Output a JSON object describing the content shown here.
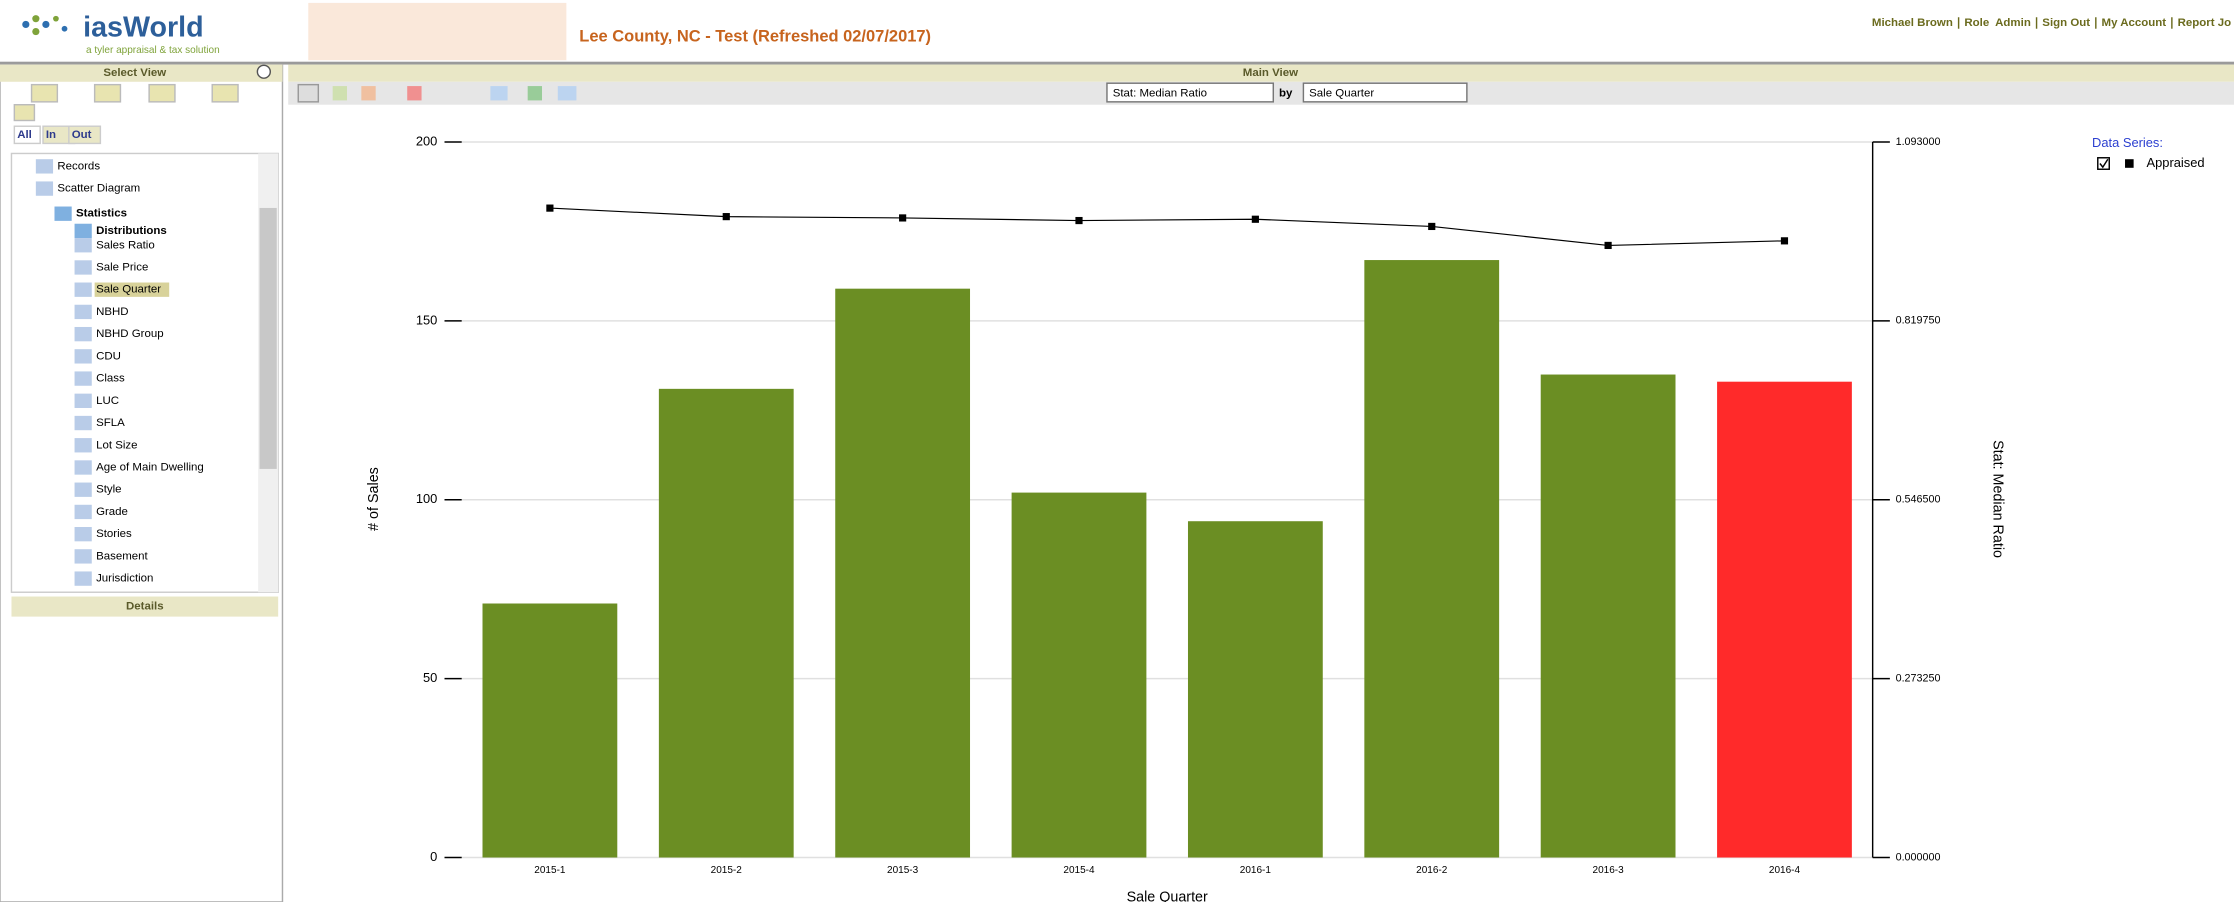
{
  "header": {
    "logo": "iasWorld",
    "tagline": "a tyler appraisal & tax solution",
    "title": "Lee County, NC - Test (Refreshed 02/07/2017)",
    "links": [
      "Michael Brown",
      "Role  Admin",
      "Sign Out",
      "My Account",
      "Report Jo"
    ]
  },
  "sidebar": {
    "title": "Select View",
    "tabs": [
      "All",
      "In",
      "Out"
    ],
    "tree": [
      "Records",
      "Scatter Diagram",
      "Statistics",
      "Distributions",
      "Sales Ratio",
      "Sale Price",
      "Sale Quarter",
      "NBHD",
      "NBHD Group",
      "CDU",
      "Class",
      "LUC",
      "SFLA",
      "Lot Size",
      "Age of Main Dwelling",
      "Style",
      "Grade",
      "Stories",
      "Basement",
      "Jurisdiction"
    ],
    "details": "Details"
  },
  "main": {
    "title": "Main View",
    "stat_select": "Stat: Median Ratio",
    "by": "by",
    "group_select": "Sale Quarter"
  },
  "chart_data": {
    "type": "bar",
    "categories": [
      "2015-1",
      "2015-2",
      "2015-3",
      "2015-4",
      "2016-1",
      "2016-2",
      "2016-3",
      "2016-4"
    ],
    "series": [
      {
        "type": "bar",
        "color": "#6b8e23",
        "bar_colors": [
          "#6b8e23",
          "#6b8e23",
          "#6b8e23",
          "#6b8e23",
          "#6b8e23",
          "#6b8e23",
          "#6b8e23",
          "#ff2a2a"
        ],
        "values": [
          71,
          131,
          159,
          102,
          94,
          167,
          135,
          133
        ]
      },
      {
        "type": "line",
        "axis": "y2",
        "name": "Appraised",
        "color": "#000000",
        "values": [
          0.992,
          0.979,
          0.977,
          0.973,
          0.975,
          0.964,
          0.935,
          0.942
        ]
      }
    ],
    "xlabel": "Sale Quarter",
    "ylabel": "# of Sales",
    "y2label": "Stat: Median Ratio",
    "legend_title": "Data Series:",
    "ylim": [
      0,
      200
    ],
    "yticks": [
      0,
      50,
      100,
      150,
      200
    ],
    "y2lim": [
      0,
      1.093
    ],
    "y2ticks": [
      {
        "value": 0,
        "label": "0.000000"
      },
      {
        "value": 0.27325,
        "label": "0.273250"
      },
      {
        "value": 0.5465,
        "label": "0.546500"
      },
      {
        "value": 0.81975,
        "label": "0.819750"
      },
      {
        "value": 1.093,
        "label": "1.093000"
      }
    ],
    "grid": true
  }
}
